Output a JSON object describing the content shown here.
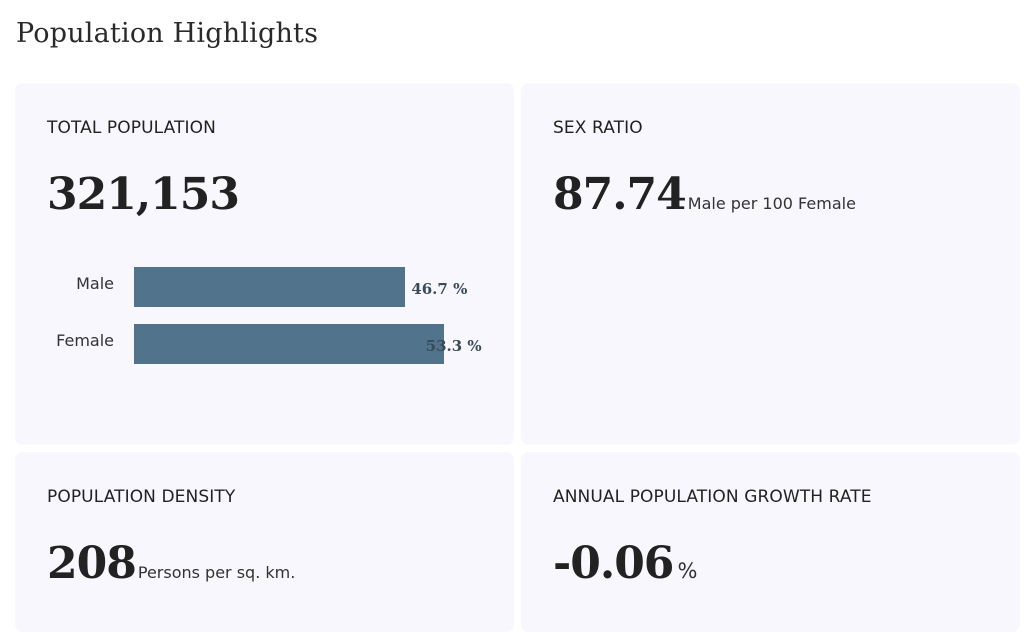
{
  "header": {
    "title": "Population Highlights"
  },
  "cards": {
    "total_population": {
      "label": "TOTAL POPULATION",
      "value": "321,153",
      "bars": [
        {
          "label": "Male",
          "value": 46.7,
          "display": "46.7 %"
        },
        {
          "label": "Female",
          "value": 53.3,
          "display": "53.3 %"
        }
      ]
    },
    "sex_ratio": {
      "label": "SEX RATIO",
      "value": "87.74",
      "unit": "Male per 100 Female"
    },
    "population_density": {
      "label": "POPULATION DENSITY",
      "value": "208",
      "unit": "Persons per sq. km."
    },
    "growth_rate": {
      "label": "ANNUAL POPULATION GROWTH RATE",
      "value": "-0.06",
      "unit": "%"
    }
  },
  "colors": {
    "bar": "#51738c",
    "card_background": "#f8f7fd"
  }
}
